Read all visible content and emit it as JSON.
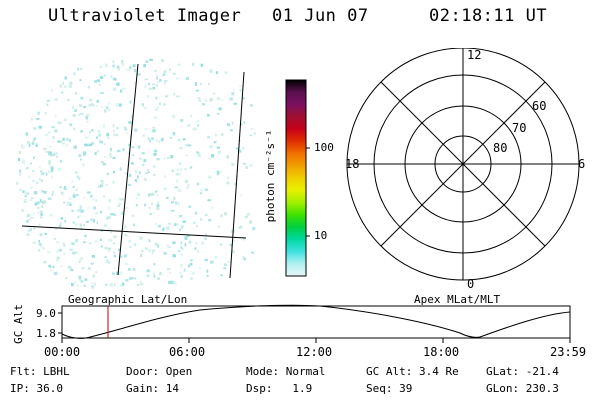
{
  "header": {
    "instrument": "Ultraviolet Imager",
    "date": "01 Jun 07",
    "time": "02:18:11 UT"
  },
  "colorbar": {
    "unit_label": "photon cm⁻²s⁻¹",
    "ticks": [
      "100",
      "10"
    ],
    "colors": [
      "#000000",
      "#5a1050",
      "#7a1060",
      "#a01030",
      "#c80018",
      "#e03000",
      "#f07000",
      "#f0a000",
      "#f0d000",
      "#e8f000",
      "#a0f000",
      "#40e000",
      "#00d040",
      "#00d8a0",
      "#40e0e0",
      "#b0f0f0",
      "#e8f8f8"
    ]
  },
  "polar": {
    "mlt_labels": {
      "top": "12",
      "left": "18",
      "right": "6",
      "bottom": "0"
    },
    "lat_labels": [
      "60",
      "70",
      "80"
    ]
  },
  "strip": {
    "left_label": "Geographic Lat/Lon",
    "right_label": "Apex MLat/MLT",
    "y_axis_label": "GC Alt",
    "y_ticks": [
      "9.0",
      "1.8"
    ],
    "x_ticks": [
      "00:00",
      "06:00",
      "12:00",
      "18:00",
      "23:59"
    ]
  },
  "status": {
    "row1": [
      {
        "label": "Flt:",
        "value": "LBHL"
      },
      {
        "label": "Door:",
        "value": "Open"
      },
      {
        "label": "Mode:",
        "value": "Normal"
      },
      {
        "label": "GC Alt:",
        "value": "3.4 Re"
      },
      {
        "label": "GLat:",
        "value": "-21.4"
      }
    ],
    "row2": [
      {
        "label": "IP:",
        "value": "36.0"
      },
      {
        "label": "Gain:",
        "value": "14"
      },
      {
        "label": "Dsp:",
        "value": "1.9"
      },
      {
        "label": "Seq:",
        "value": "39"
      },
      {
        "label": "GLon:",
        "value": "230.3"
      }
    ]
  }
}
